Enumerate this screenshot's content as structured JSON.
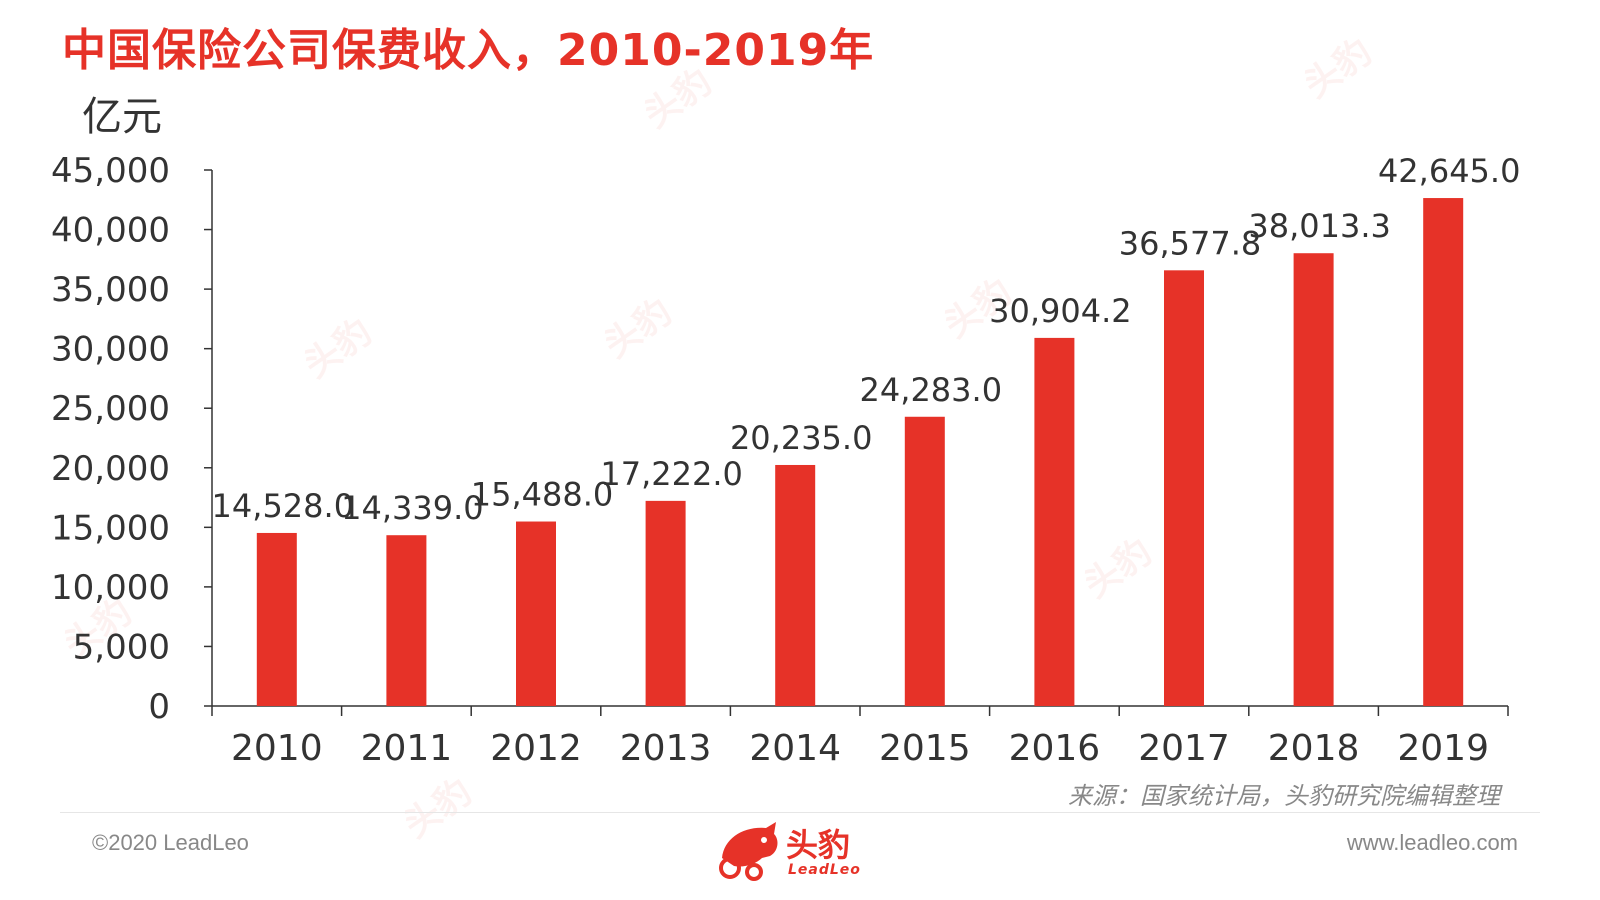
{
  "header": {
    "title": "中国保险公司保费收入，2010-2019年",
    "unit": "亿元"
  },
  "chart_data": {
    "type": "bar",
    "categories": [
      "2010",
      "2011",
      "2012",
      "2013",
      "2014",
      "2015",
      "2016",
      "2017",
      "2018",
      "2019"
    ],
    "values": [
      14528.0,
      14339.0,
      15488.0,
      17222.0,
      20235.0,
      24283.0,
      30904.2,
      36577.8,
      38013.3,
      42645.0
    ],
    "value_labels": [
      "14,528.0",
      "14,339.0",
      "15,488.0",
      "17,222.0",
      "20,235.0",
      "24,283.0",
      "30,904.2",
      "36,577.8",
      "38,013.3",
      "42,645.0"
    ],
    "ylim": [
      0,
      45000
    ],
    "yticks": [
      0,
      5000,
      10000,
      15000,
      20000,
      25000,
      30000,
      35000,
      40000,
      45000
    ],
    "ytick_labels": [
      "0",
      "5,000",
      "10,000",
      "15,000",
      "20,000",
      "25,000",
      "30,000",
      "35,000",
      "40,000",
      "45,000"
    ],
    "bar_color": "#e63228",
    "grid": false
  },
  "footer": {
    "source": "来源：国家统计局，头豹研究院编辑整理",
    "copyright": "©2020 LeadLeo",
    "website": "www.leadleo.com",
    "logo_cn": "头豹",
    "logo_en": "LeadLeo"
  },
  "colors": {
    "accent": "#e63228",
    "text": "#333333",
    "muted": "#888888"
  }
}
